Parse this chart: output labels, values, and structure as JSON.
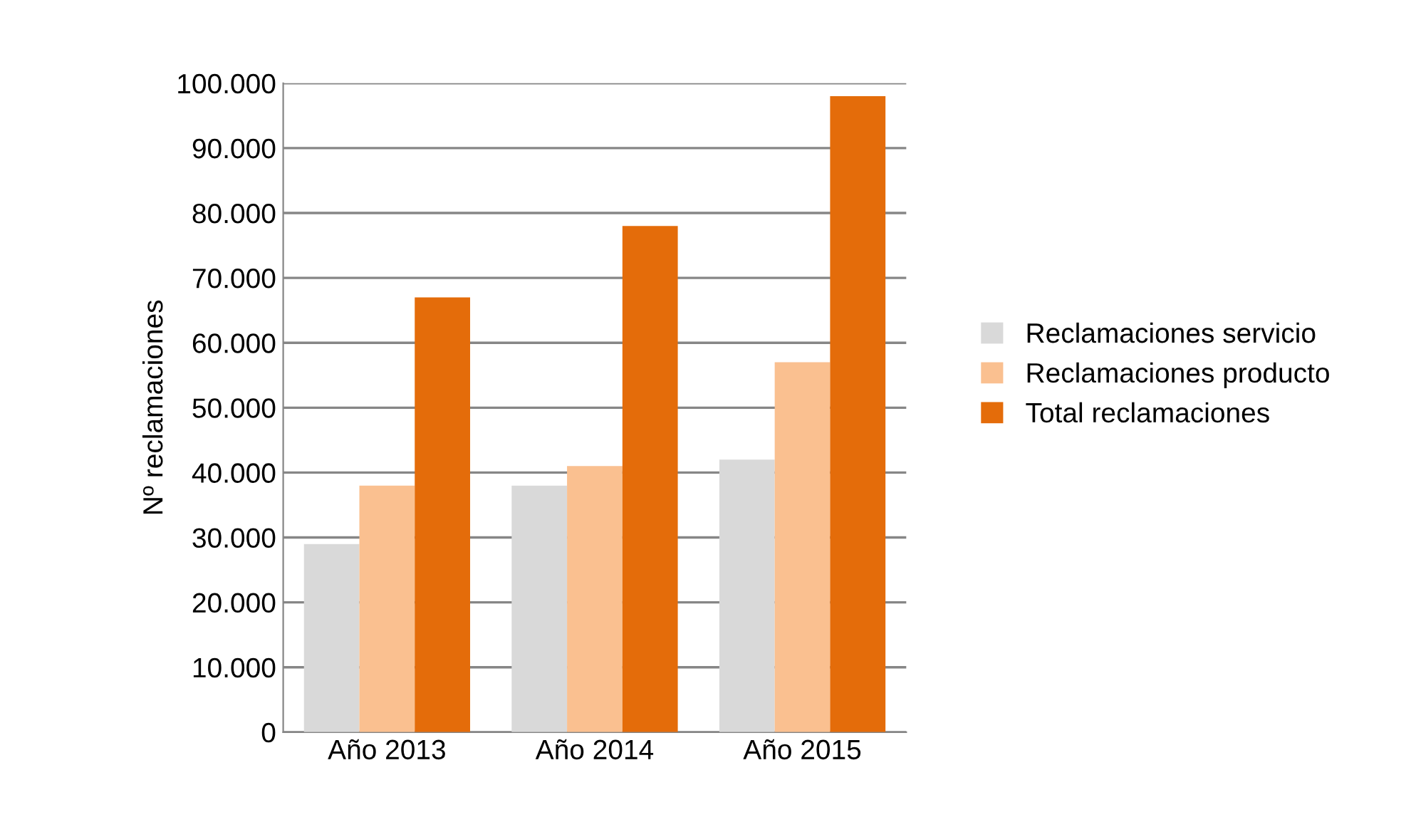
{
  "chart_data": {
    "type": "bar",
    "ylabel": "Nº reclamaciones",
    "categories": [
      "Año 2013",
      "Año 2014",
      "Año 2015"
    ],
    "series": [
      {
        "name": "Reclamaciones servicio",
        "color": "#d9d9d9",
        "values": [
          29000,
          38000,
          42000
        ]
      },
      {
        "name": "Reclamaciones producto",
        "color": "#fac090",
        "values": [
          38000,
          41000,
          57000
        ]
      },
      {
        "name": "Total reclamaciones",
        "color": "#e46c0a",
        "values": [
          67000,
          78000,
          98000
        ]
      }
    ],
    "ylim": [
      0,
      100000
    ],
    "yticks": [
      0,
      {
        "value": 10000,
        "label": "10.000"
      },
      {
        "value": 20000,
        "label": "20.000"
      },
      {
        "value": 30000,
        "label": "30.000"
      },
      {
        "value": 40000,
        "label": "40.000"
      },
      {
        "value": 50000,
        "label": "50.000"
      },
      {
        "value": 60000,
        "label": "60.000"
      },
      {
        "value": 70000,
        "label": "70.000"
      },
      {
        "value": 80000,
        "label": "80.000"
      },
      {
        "value": 90000,
        "label": "90.000"
      },
      {
        "value": 100000,
        "label": "100.000"
      }
    ],
    "grid": "y",
    "legend": "right"
  }
}
